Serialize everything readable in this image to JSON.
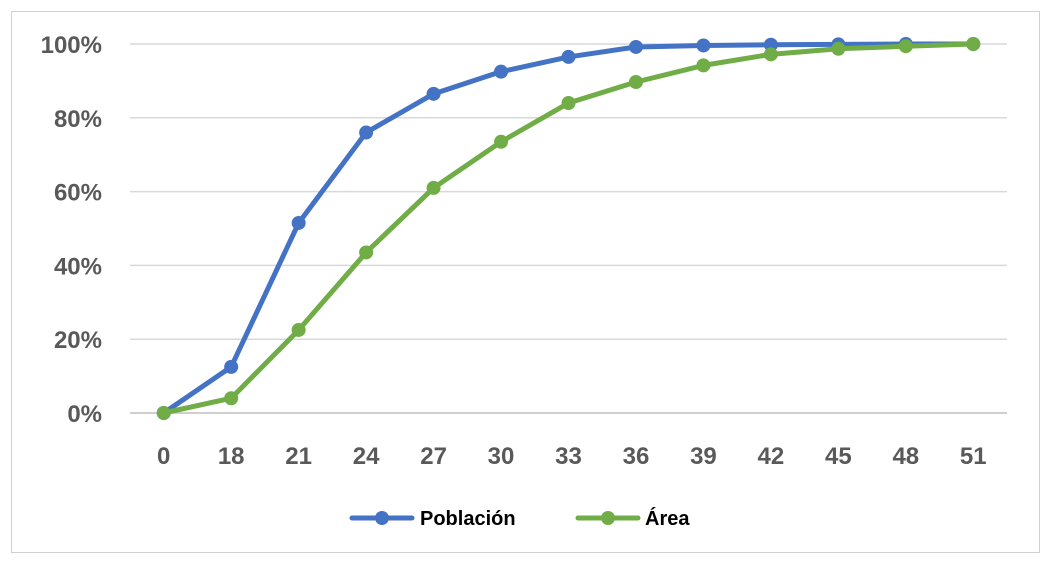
{
  "chart_data": {
    "type": "line",
    "x": [
      0,
      18,
      21,
      24,
      27,
      30,
      33,
      36,
      39,
      42,
      45,
      48,
      51
    ],
    "x_tick_labels": [
      "0",
      "18",
      "21",
      "24",
      "27",
      "30",
      "33",
      "36",
      "39",
      "42",
      "45",
      "48",
      "51"
    ],
    "y_tick_labels": [
      "0%",
      "20%",
      "40%",
      "60%",
      "80%",
      "100%"
    ],
    "ylim": [
      0,
      100
    ],
    "y_ticks": [
      0,
      20,
      40,
      60,
      80,
      100
    ],
    "y_unit": "%",
    "grid": true,
    "legend": "bottom-center",
    "title": "",
    "xlabel": "",
    "ylabel": "",
    "series": [
      {
        "name": "Población",
        "color": "#4472c4",
        "values": [
          0,
          12.5,
          51.5,
          76,
          86.5,
          92.5,
          96.5,
          99.2,
          99.6,
          99.8,
          99.9,
          100,
          100
        ]
      },
      {
        "name": "Área",
        "color": "#70ad47",
        "values": [
          0,
          4,
          22.5,
          43.5,
          61,
          73.5,
          84,
          89.7,
          94.2,
          97.2,
          98.7,
          99.4,
          100
        ]
      }
    ]
  }
}
